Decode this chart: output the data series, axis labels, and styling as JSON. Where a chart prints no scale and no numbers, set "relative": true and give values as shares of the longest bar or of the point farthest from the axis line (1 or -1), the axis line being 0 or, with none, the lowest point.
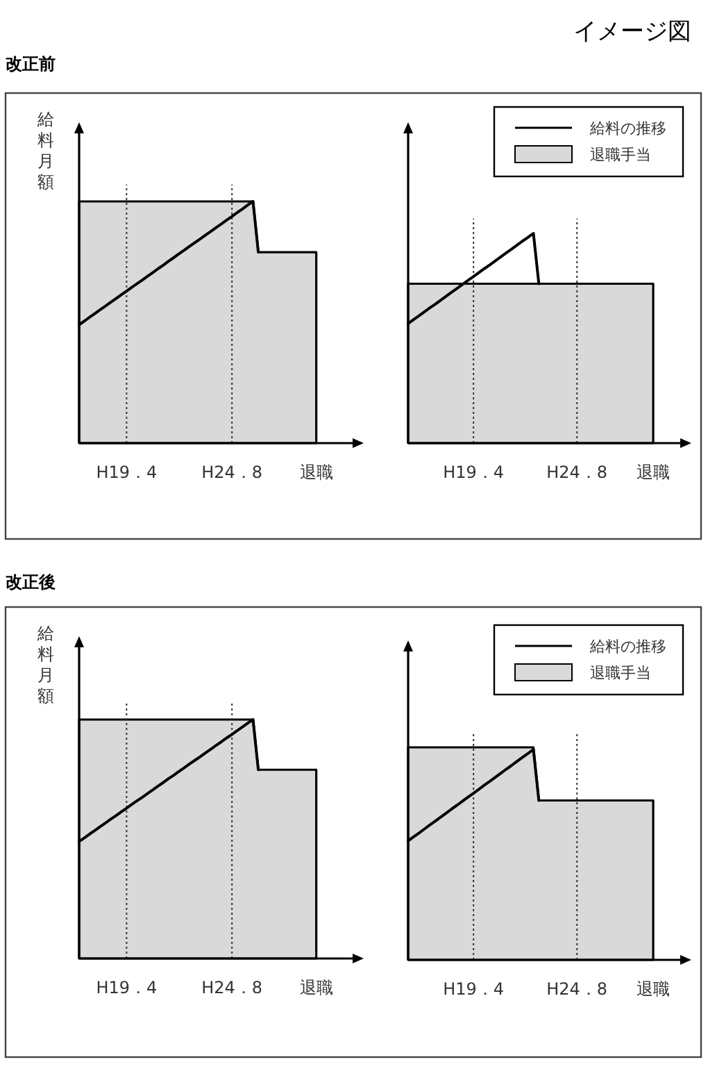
{
  "chart_data": [
    {
      "type": "area",
      "title": "改正前",
      "annotations": [
        "イメージ図"
      ],
      "ylabel": "給料月額",
      "relative": true,
      "tick_labels": "x",
      "categories": [
        null,
        null,
        null,
        null,
        null,
        null,
        null,
        null,
        null,
        "H19．4",
        null,
        null,
        null,
        null,
        null,
        null,
        null,
        null,
        null,
        null,
        null,
        null,
        null,
        null,
        null,
        null,
        null,
        null,
        null,
        "H24．8",
        null,
        null,
        null,
        null,
        null,
        null,
        null,
        null,
        null,
        null,
        null,
        null,
        null,
        null,
        null,
        "退職",
        null,
        null,
        null,
        null,
        null,
        null,
        null,
        null,
        null
      ],
      "ref_lines": [
        {
          "axis": "x",
          "value": "H19．4",
          "line_style": "dotted"
        },
        {
          "axis": "x",
          "value": "H24．8",
          "line_style": "dotted"
        }
      ],
      "series": [
        {
          "color": "#d9d9d9",
          "values": [
            1,
            1,
            1,
            1,
            1,
            1,
            1,
            1,
            1,
            1,
            1,
            1,
            1,
            1,
            1,
            1,
            1,
            1,
            1,
            1,
            1,
            1,
            1,
            1,
            1,
            1,
            1,
            1,
            1,
            1,
            1,
            1,
            1,
            1,
            0.79,
            0.79,
            0.79,
            0.79,
            0.79,
            0.79,
            0.79,
            0.79,
            0.79,
            0.79,
            0.79,
            0.79,
            null,
            null,
            null,
            null,
            null,
            null,
            null,
            null,
            null
          ]
        },
        {
          "type": "line",
          "color": "#000000",
          "values": [
            0.49,
            0.505,
            0.521,
            0.536,
            0.552,
            0.567,
            0.583,
            0.598,
            0.614,
            0.629,
            0.645,
            0.66,
            0.675,
            0.691,
            0.706,
            0.722,
            0.737,
            0.753,
            0.768,
            0.784,
            0.799,
            0.815,
            0.83,
            0.845,
            0.861,
            0.876,
            0.892,
            0.907,
            0.923,
            0.938,
            0.954,
            0.969,
            0.985,
            1,
            0.79,
            null,
            null,
            null,
            null,
            null,
            null,
            null,
            null,
            null,
            null,
            null,
            null,
            null,
            null,
            null,
            null,
            null,
            null,
            null,
            null
          ]
        }
      ]
    },
    {
      "type": "area",
      "relative": true,
      "tick_labels": "x",
      "legend": "top right",
      "categories": [
        null,
        null,
        null,
        null,
        null,
        null,
        null,
        null,
        null,
        null,
        null,
        null,
        "H19．4",
        null,
        null,
        null,
        null,
        null,
        null,
        null,
        null,
        null,
        null,
        null,
        null,
        null,
        null,
        null,
        null,
        null,
        null,
        "H24．8",
        null,
        null,
        null,
        null,
        null,
        null,
        null,
        null,
        null,
        null,
        null,
        null,
        null,
        "退職",
        null,
        null,
        null,
        null,
        null,
        null,
        null
      ],
      "ref_lines": [
        {
          "axis": "x",
          "value": "H19．4",
          "line_style": "dotted"
        },
        {
          "axis": "x",
          "value": "H24．8",
          "line_style": "dotted"
        }
      ],
      "series": [
        {
          "type": "line",
          "name": "給料の推移",
          "color": "#000000",
          "values": [
            0.57,
            0.589,
            0.607,
            0.626,
            0.645,
            0.663,
            0.682,
            0.701,
            0.72,
            0.738,
            0.757,
            0.776,
            0.794,
            0.813,
            0.832,
            0.85,
            0.869,
            0.888,
            0.907,
            0.925,
            0.944,
            0.963,
            0.981,
            1,
            0.76,
            null,
            null,
            null,
            null,
            null,
            null,
            null,
            null,
            null,
            null,
            null,
            null,
            null,
            null,
            null,
            null,
            null,
            null,
            null,
            null,
            null,
            null,
            null,
            null,
            null,
            null,
            null,
            null
          ]
        },
        {
          "name": "退職手当",
          "color": "#d9d9d9",
          "values": [
            0.76,
            0.76,
            0.76,
            0.76,
            0.76,
            0.76,
            0.76,
            0.76,
            0.76,
            0.76,
            0.76,
            0.76,
            0.76,
            0.76,
            0.76,
            0.76,
            0.76,
            0.76,
            0.76,
            0.76,
            0.76,
            0.76,
            0.76,
            0.76,
            0.76,
            0.76,
            0.76,
            0.76,
            0.76,
            0.76,
            0.76,
            0.76,
            0.76,
            0.76,
            0.76,
            0.76,
            0.76,
            0.76,
            0.76,
            0.76,
            0.76,
            0.76,
            0.76,
            0.76,
            0.76,
            0.76,
            null,
            null,
            null,
            null,
            null,
            null,
            null
          ]
        }
      ]
    },
    {
      "type": "area",
      "title": "改正後",
      "ylabel": "給料月額",
      "relative": true,
      "tick_labels": "x",
      "categories": [
        null,
        null,
        null,
        null,
        null,
        null,
        null,
        null,
        null,
        "H19．4",
        null,
        null,
        null,
        null,
        null,
        null,
        null,
        null,
        null,
        null,
        null,
        null,
        null,
        null,
        null,
        null,
        null,
        null,
        null,
        "H24．8",
        null,
        null,
        null,
        null,
        null,
        null,
        null,
        null,
        null,
        null,
        null,
        null,
        null,
        null,
        null,
        "退職",
        null,
        null,
        null,
        null,
        null,
        null,
        null,
        null,
        null
      ],
      "ref_lines": [
        {
          "axis": "x",
          "value": "H19．4",
          "line_style": "dotted"
        },
        {
          "axis": "x",
          "value": "H24．8",
          "line_style": "dotted"
        }
      ],
      "series": [
        {
          "color": "#d9d9d9",
          "values": [
            1,
            1,
            1,
            1,
            1,
            1,
            1,
            1,
            1,
            1,
            1,
            1,
            1,
            1,
            1,
            1,
            1,
            1,
            1,
            1,
            1,
            1,
            1,
            1,
            1,
            1,
            1,
            1,
            1,
            1,
            1,
            1,
            1,
            1,
            0.79,
            0.79,
            0.79,
            0.79,
            0.79,
            0.79,
            0.79,
            0.79,
            0.79,
            0.79,
            0.79,
            0.79,
            null,
            null,
            null,
            null,
            null,
            null,
            null,
            null,
            null
          ]
        },
        {
          "type": "line",
          "color": "#000000",
          "values": [
            0.49,
            0.505,
            0.521,
            0.536,
            0.552,
            0.567,
            0.583,
            0.598,
            0.614,
            0.629,
            0.645,
            0.66,
            0.675,
            0.691,
            0.706,
            0.722,
            0.737,
            0.753,
            0.768,
            0.784,
            0.799,
            0.815,
            0.83,
            0.845,
            0.861,
            0.876,
            0.892,
            0.907,
            0.923,
            0.938,
            0.954,
            0.969,
            0.985,
            1,
            0.79,
            null,
            null,
            null,
            null,
            null,
            null,
            null,
            null,
            null,
            null,
            null,
            null,
            null,
            null,
            null,
            null,
            null,
            null,
            null,
            null
          ]
        }
      ]
    },
    {
      "type": "area",
      "relative": true,
      "tick_labels": "x",
      "legend": "top right",
      "categories": [
        null,
        null,
        null,
        null,
        null,
        null,
        null,
        null,
        null,
        null,
        null,
        null,
        "H19．4",
        null,
        null,
        null,
        null,
        null,
        null,
        null,
        null,
        null,
        null,
        null,
        null,
        null,
        null,
        null,
        null,
        null,
        null,
        "H24．8",
        null,
        null,
        null,
        null,
        null,
        null,
        null,
        null,
        null,
        null,
        null,
        null,
        null,
        "退職",
        null,
        null,
        null,
        null,
        null,
        null,
        null
      ],
      "ref_lines": [
        {
          "axis": "x",
          "value": "H19．4",
          "line_style": "dotted"
        },
        {
          "axis": "x",
          "value": "H24．8",
          "line_style": "dotted"
        }
      ],
      "series": [
        {
          "type": "line",
          "name": "給料の推移",
          "color": "#000000",
          "values": [
            0.56,
            0.579,
            0.597,
            0.616,
            0.635,
            0.653,
            0.672,
            0.691,
            0.71,
            0.728,
            0.747,
            0.766,
            0.784,
            0.803,
            0.822,
            0.84,
            0.859,
            0.878,
            0.897,
            0.915,
            0.934,
            0.953,
            0.971,
            0.99,
            0.75,
            null,
            null,
            null,
            null,
            null,
            null,
            null,
            null,
            null,
            null,
            null,
            null,
            null,
            null,
            null,
            null,
            null,
            null,
            null,
            null,
            null,
            null,
            null,
            null,
            null,
            null,
            null,
            null
          ]
        },
        {
          "name": "退職手当",
          "color": "#d9d9d9",
          "values": [
            1,
            1,
            1,
            1,
            1,
            1,
            1,
            1,
            1,
            1,
            1,
            1,
            1,
            1,
            1,
            1,
            1,
            1,
            1,
            1,
            1,
            1,
            1,
            1,
            0.75,
            0.75,
            0.75,
            0.75,
            0.75,
            0.75,
            0.75,
            0.75,
            0.75,
            0.75,
            0.75,
            0.75,
            0.75,
            0.75,
            0.75,
            0.75,
            0.75,
            0.75,
            0.75,
            0.75,
            0.75,
            0.75,
            null,
            null,
            null,
            null,
            null,
            null,
            null
          ]
        }
      ]
    }
  ]
}
